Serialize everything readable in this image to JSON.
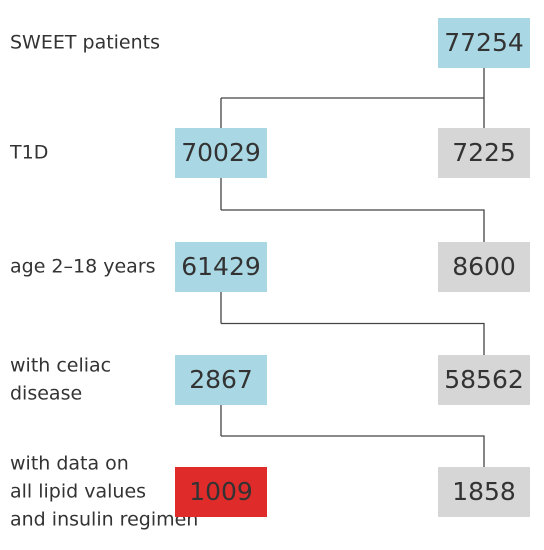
{
  "start": {
    "label": [
      "SWEET patients"
    ],
    "value": 77254
  },
  "steps": [
    {
      "label": [
        "T1D"
      ],
      "included": 70029,
      "excluded": 7225
    },
    {
      "label": [
        "age 2–18 years"
      ],
      "included": 61429,
      "excluded": 8600
    },
    {
      "label": [
        "with celiac",
        "disease"
      ],
      "included": 2867,
      "excluded": 58562
    },
    {
      "label": [
        "with data on",
        "all lipid values",
        "and insulin regimen"
      ],
      "included": 1009,
      "excluded": 1858
    }
  ]
}
